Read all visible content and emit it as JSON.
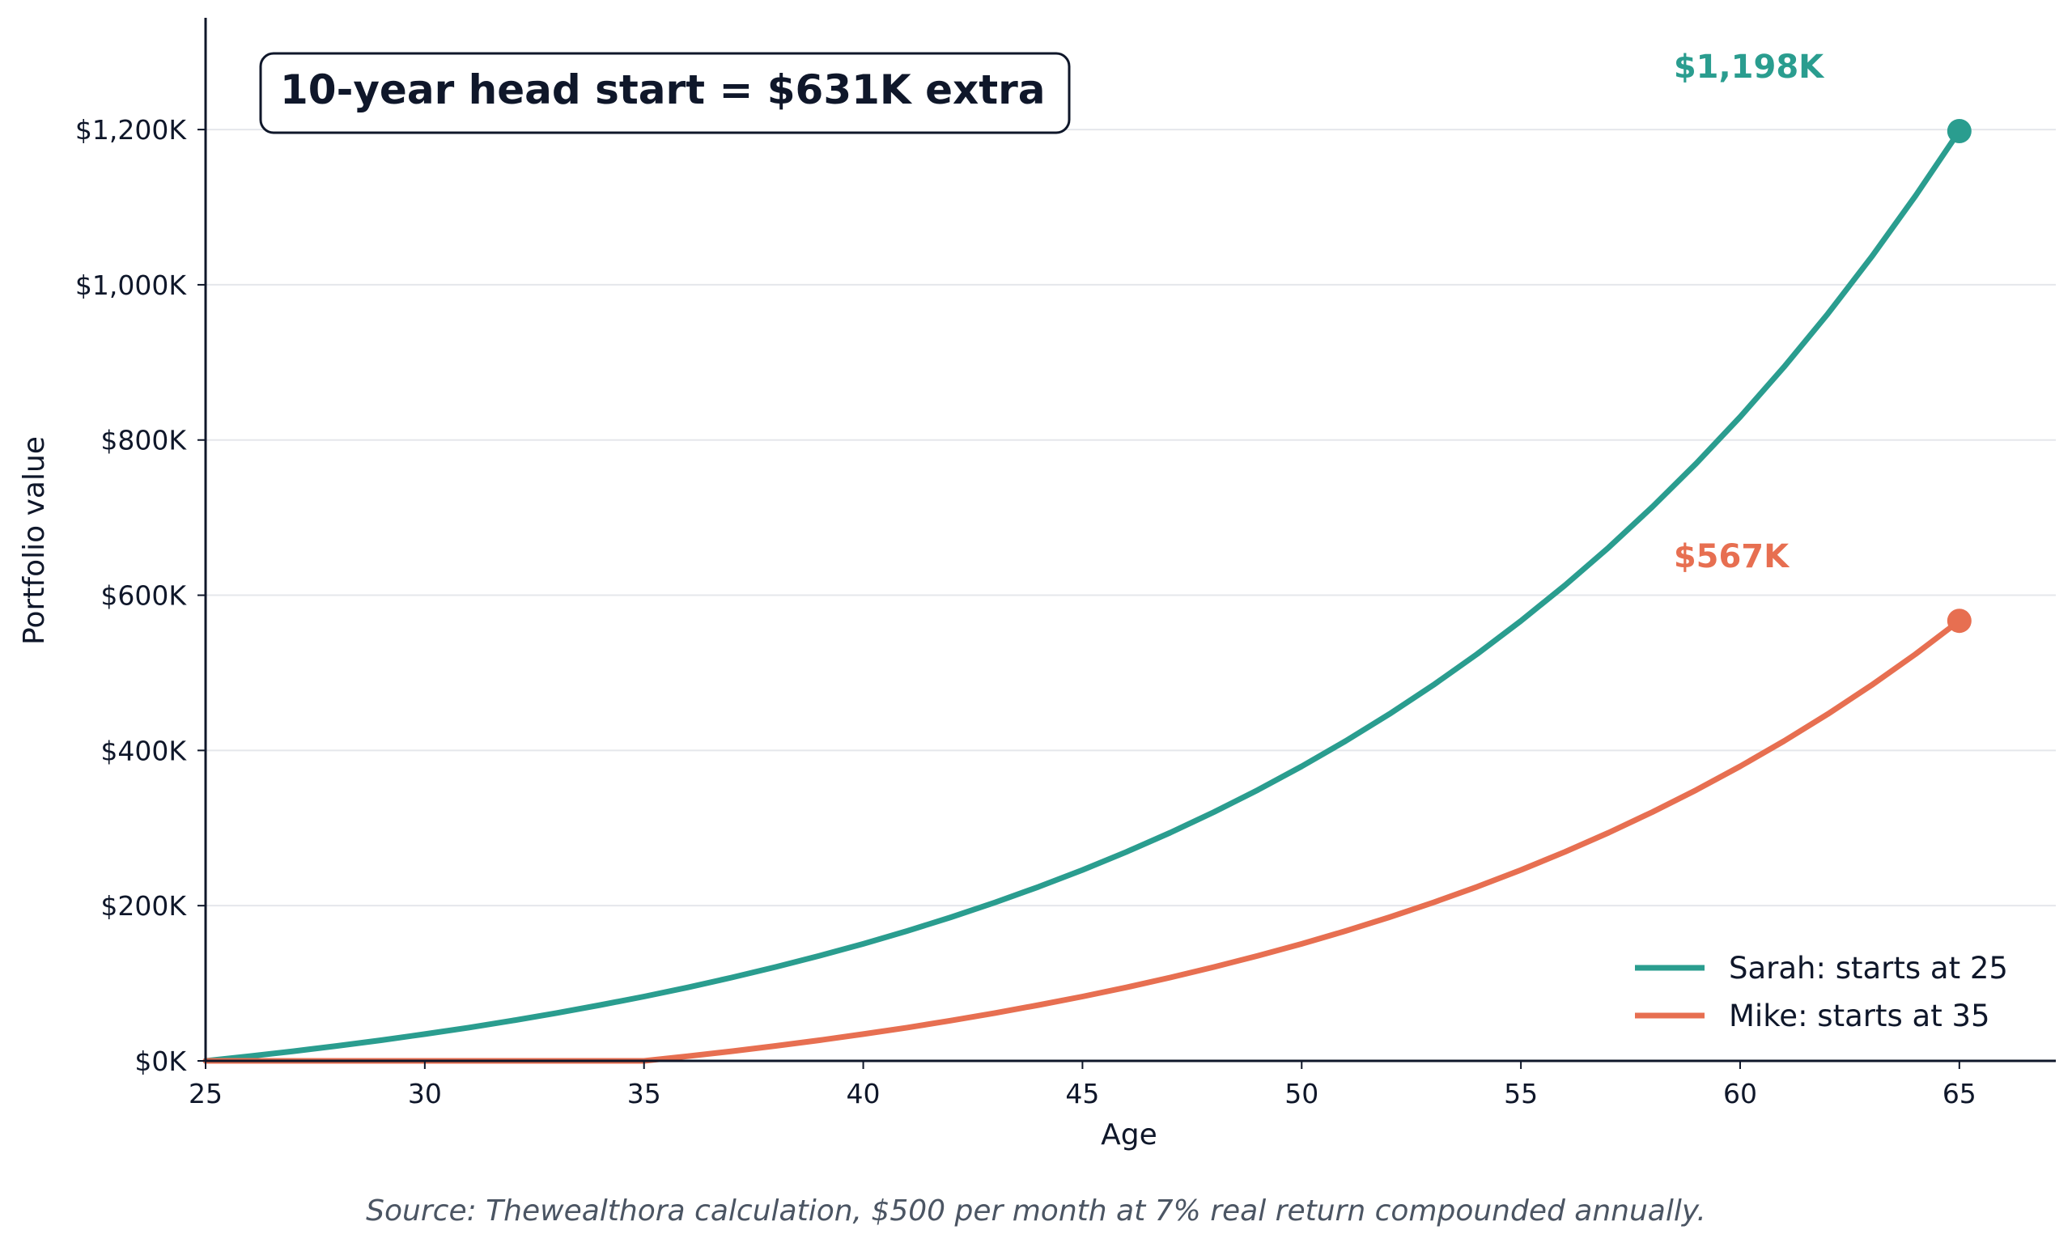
{
  "chart_data": {
    "type": "line",
    "xlabel": "Age",
    "ylabel": "Portfolio value",
    "xlim": [
      25,
      67.2
    ],
    "ylim": [
      0,
      1344
    ],
    "x_ticks": [
      25,
      30,
      35,
      40,
      45,
      50,
      55,
      60,
      65
    ],
    "y_ticks": [
      0,
      200,
      400,
      600,
      800,
      1000,
      1200
    ],
    "y_tick_labels": [
      "$0K",
      "$200K",
      "$400K",
      "$600K",
      "$800K",
      "$1,000K",
      "$1,200K"
    ],
    "grid": "horizontal",
    "legend_position": "bottom-right",
    "series": [
      {
        "name": "Sarah: starts at 25",
        "color": "#2a9d8f",
        "x": [
          25,
          26,
          27,
          28,
          29,
          30,
          31,
          32,
          33,
          34,
          35,
          36,
          37,
          38,
          39,
          40,
          41,
          42,
          43,
          44,
          45,
          46,
          47,
          48,
          49,
          50,
          51,
          52,
          53,
          54,
          55,
          56,
          57,
          58,
          59,
          60,
          61,
          62,
          63,
          64,
          65
        ],
        "values": [
          0,
          6.0,
          12.4,
          19.3,
          26.6,
          34.5,
          42.9,
          51.9,
          61.6,
          71.9,
          82.9,
          94.7,
          107.4,
          120.9,
          135.4,
          150.8,
          167.4,
          185.1,
          204.0,
          224.3,
          246.0,
          269.2,
          294.0,
          320.6,
          349.1,
          379.5,
          412.1,
          446.9,
          484.2,
          524.2,
          566.9,
          612.6,
          661.5,
          713.9,
          769.9,
          829.8,
          894.0,
          962.6,
          1036.1,
          1114.7,
          1198.0
        ]
      },
      {
        "name": "Mike: starts at 35",
        "color": "#e76f51",
        "x": [
          25,
          26,
          27,
          28,
          29,
          30,
          31,
          32,
          33,
          34,
          35,
          36,
          37,
          38,
          39,
          40,
          41,
          42,
          43,
          44,
          45,
          46,
          47,
          48,
          49,
          50,
          51,
          52,
          53,
          54,
          55,
          56,
          57,
          58,
          59,
          60,
          61,
          62,
          63,
          64,
          65
        ],
        "values": [
          0,
          0,
          0,
          0,
          0,
          0,
          0,
          0,
          0,
          0,
          0,
          6.0,
          12.4,
          19.3,
          26.6,
          34.5,
          42.9,
          51.9,
          61.6,
          71.9,
          82.9,
          94.7,
          107.4,
          120.9,
          135.4,
          150.8,
          167.4,
          185.1,
          204.0,
          224.3,
          246.0,
          269.2,
          294.0,
          320.6,
          349.1,
          379.5,
          412.1,
          446.9,
          484.2,
          524.2,
          567.0
        ]
      }
    ],
    "end_labels": [
      {
        "text": "$1,198K",
        "x": 65,
        "y": 1198,
        "color": "#2a9d8f"
      },
      {
        "text": "$567K",
        "x": 65,
        "y": 567,
        "color": "#e76f51"
      }
    ],
    "annotation": "10-year head start = $631K extra",
    "source": "Source: Thewealthora calculation, $500 per month at 7% real return compounded annually."
  }
}
